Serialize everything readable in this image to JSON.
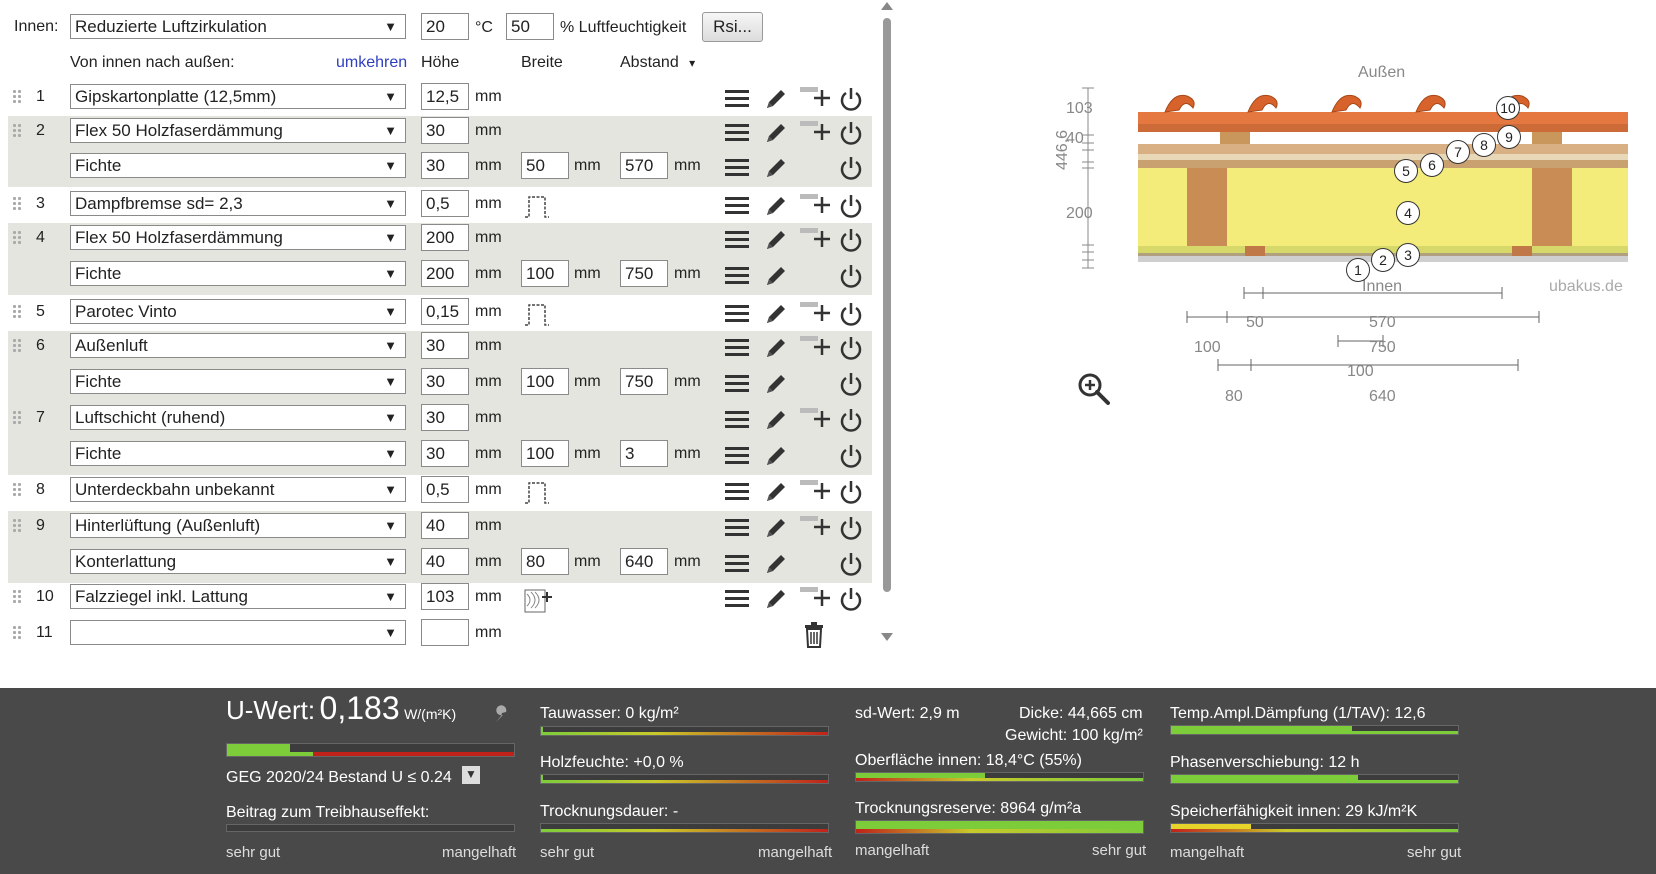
{
  "header": {
    "inner_label": "Innen:",
    "climate_select": "Reduzierte Luftzirkulation",
    "temperature": "20",
    "temp_unit": "°C",
    "humidity": "50",
    "humidity_unit": "% Luftfeuchtigkeit",
    "rsi_button": "Rsi..."
  },
  "columns": {
    "order_label": "Von innen nach außen:",
    "reverse_link": "umkehren",
    "height": "Höhe",
    "width": "Breite",
    "spacing": "Abstand",
    "spacing_arrow": "▾"
  },
  "layers": [
    {
      "n": "1",
      "material": "Gipskartonplatte (12,5mm)",
      "height": "12,5",
      "unit": "mm"
    },
    {
      "n": "2",
      "material": "Flex 50 Holzfaserdämmung",
      "height": "30",
      "unit": "mm",
      "sub": {
        "material": "Fichte",
        "height": "30",
        "width": "50",
        "spacing": "570"
      }
    },
    {
      "n": "3",
      "material": "Dampfbremse sd= 2,3",
      "height": "0,5",
      "unit": "mm"
    },
    {
      "n": "4",
      "material": "Flex 50 Holzfaserdämmung",
      "height": "200",
      "unit": "mm",
      "sub": {
        "material": "Fichte",
        "height": "200",
        "width": "100",
        "spacing": "750"
      }
    },
    {
      "n": "5",
      "material": "Parotec Vinto",
      "height": "0,15",
      "unit": "mm"
    },
    {
      "n": "6",
      "material": "Außenluft",
      "height": "30",
      "unit": "mm",
      "sub": {
        "material": "Fichte",
        "height": "30",
        "width": "100",
        "spacing": "750"
      }
    },
    {
      "n": "7",
      "material": "Luftschicht (ruhend)",
      "height": "30",
      "unit": "mm",
      "sub": {
        "material": "Fichte",
        "height": "30",
        "width": "100",
        "spacing": "3"
      }
    },
    {
      "n": "8",
      "material": "Unterdeckbahn unbekannt",
      "height": "0,5",
      "unit": "mm"
    },
    {
      "n": "9",
      "material": "Hinterlüftung (Außenluft)",
      "height": "40",
      "unit": "mm",
      "sub": {
        "material": "Konterlattung",
        "height": "40",
        "width": "80",
        "spacing": "640"
      }
    },
    {
      "n": "10",
      "material": "Falzziegel inkl. Lattung",
      "height": "103",
      "unit": "mm"
    },
    {
      "n": "11",
      "material": "",
      "height": "",
      "unit": "mm"
    }
  ],
  "unit_mm": "mm",
  "drawing": {
    "outside": "Außen",
    "inside": "Innen",
    "brand": "ubakus.de",
    "dim_103": "103",
    "dim_40": "40",
    "dim_200": "200",
    "dim_total": "446,6",
    "dim_50": "50",
    "dim_570": "570",
    "dim_100a": "100",
    "dim_750": "750",
    "dim_100b": "100",
    "dim_80": "80",
    "dim_640": "640",
    "markers": [
      "1",
      "2",
      "3",
      "4",
      "5",
      "6",
      "7",
      "8",
      "9",
      "10"
    ]
  },
  "results": {
    "u_label": "U-Wert:",
    "u_value": "0,183",
    "u_unit": "W/(m²K)",
    "u_fraction": 0.22,
    "standard": "GEG 2020/24 Bestand U ≤ 0.24",
    "greenhouse": "Beitrag zum Treibhauseffekt:",
    "scale_good": "sehr gut",
    "scale_bad": "mangelhaft",
    "condensate": "Tauwasser: 0 kg/m²",
    "wood_moisture": "Holzfeuchte: +0,0 %",
    "drying_time": "Trocknungsdauer: -",
    "sd_value": "sd-Wert: 2,9 m",
    "thickness": "Dicke: 44,665 cm",
    "weight": "Gewicht: 100 kg/m²",
    "surface_inner": "Oberfläche innen: 18,4°C (55%)",
    "surface_fraction": 0.45,
    "drying_reserve": "Trocknungsreserve: 8964 g/m²a",
    "drying_fraction": 1.0,
    "tav": "Temp.Ampl.Dämpfung (1/TAV): 12,6",
    "tav_fraction": 0.63,
    "phase": "Phasenverschiebung: 12 h",
    "phase_fraction": 0.65,
    "heat_storage": "Speicherfähigkeit innen: 29 kJ/m²K",
    "storage_fraction": 0.28
  }
}
